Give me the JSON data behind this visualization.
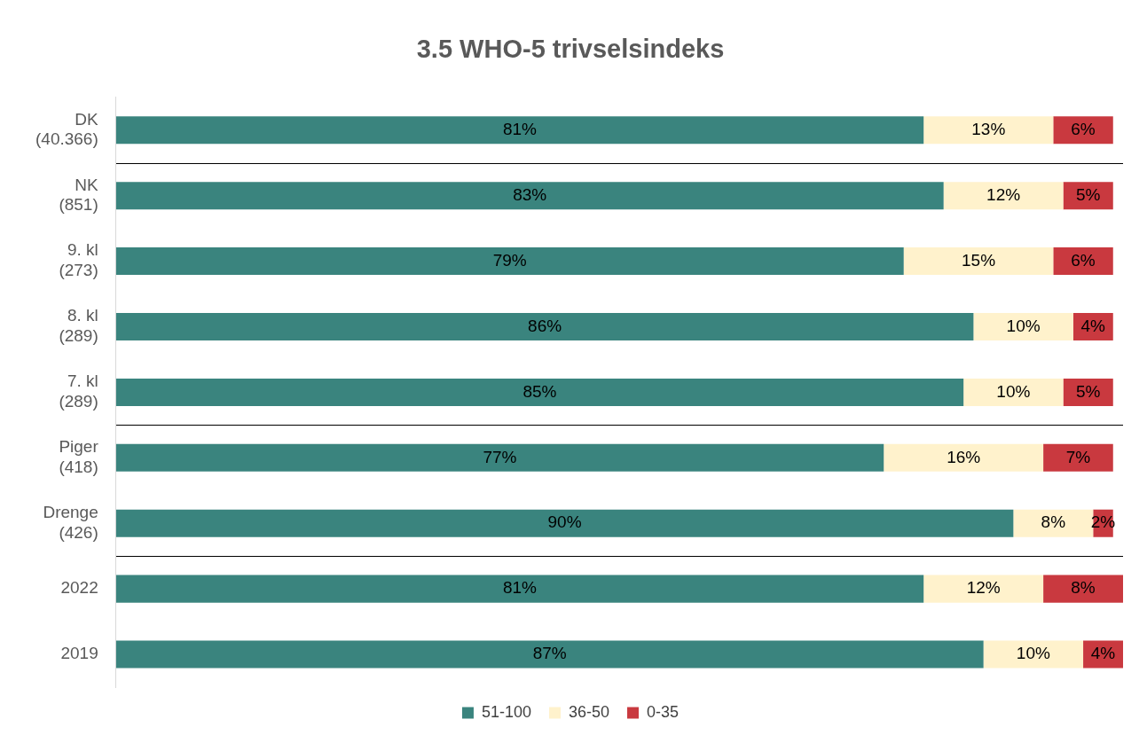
{
  "chart_data": {
    "type": "bar",
    "title": "3.5 WHO-5 trivselsindeks",
    "orientation": "horizontal",
    "stacked": true,
    "legend": "bottom",
    "grid": false,
    "tick_labels": "y",
    "categories": [
      "DK\n(40.366)",
      "NK\n(851)",
      "9. kl\n(273)",
      "8. kl\n(289)",
      "7. kl\n(289)",
      "Piger\n(418)",
      "Drenge\n(426)",
      "2022",
      "2019"
    ],
    "series": [
      {
        "name": "51-100",
        "color": "#3a847e",
        "values": [
          81,
          83,
          79,
          86,
          85,
          77,
          90,
          81,
          87
        ],
        "value_labels": [
          "81%",
          "83%",
          "79%",
          "86%",
          "85%",
          "77%",
          "90%",
          "81%",
          "87%"
        ]
      },
      {
        "name": "36-50",
        "color": "#fff2cc",
        "values": [
          13,
          12,
          15,
          10,
          10,
          16,
          8,
          12,
          10
        ],
        "value_labels": [
          "13%",
          "12%",
          "15%",
          "10%",
          "10%",
          "16%",
          "8%",
          "12%",
          "10%"
        ]
      },
      {
        "name": "0-35",
        "color": "#c9393f",
        "values": [
          6,
          5,
          6,
          4,
          5,
          7,
          2,
          8,
          4
        ],
        "value_labels": [
          "6%",
          "5%",
          "6%",
          "4%",
          "5%",
          "7%",
          "2%",
          "8%",
          "4%"
        ]
      }
    ]
  }
}
